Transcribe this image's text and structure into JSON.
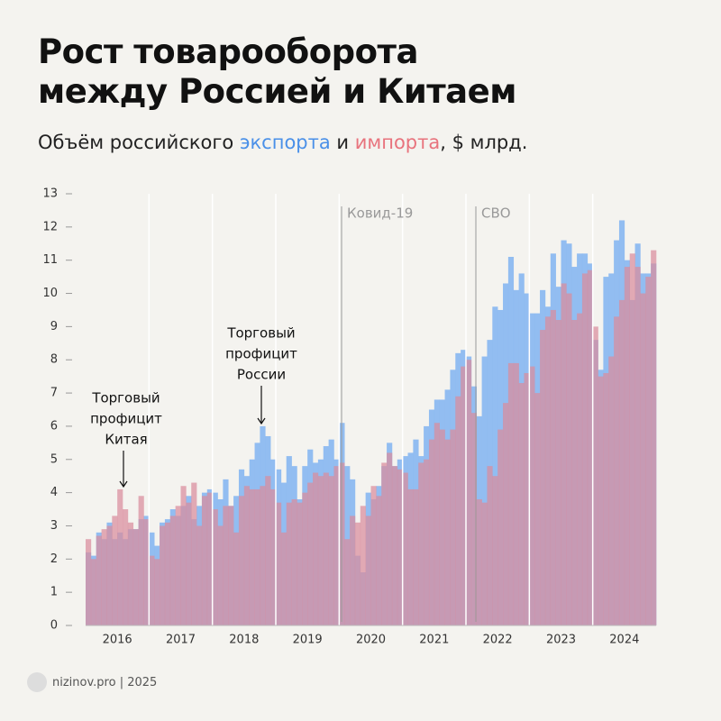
{
  "chart_data": {
    "type": "bar",
    "title": [
      "Рост товарооборота",
      "между Россией и Китаем"
    ],
    "subtitle": [
      "Объём российского ",
      " и ",
      ", $ млрд."
    ],
    "footer": "nizinov.pro | 2025",
    "categories": [
      null,
      null,
      null,
      null,
      null,
      null,
      "2016",
      null,
      null,
      null,
      null,
      null,
      null,
      null,
      null,
      null,
      null,
      null,
      "2017",
      null,
      null,
      null,
      null,
      null,
      null,
      null,
      null,
      null,
      null,
      null,
      "2018",
      null,
      null,
      null,
      null,
      null,
      null,
      null,
      null,
      null,
      null,
      null,
      "2019",
      null,
      null,
      null,
      null,
      null,
      null,
      null,
      null,
      null,
      null,
      null,
      "2020",
      null,
      null,
      null,
      null,
      null,
      null,
      null,
      null,
      null,
      null,
      null,
      "2021",
      null,
      null,
      null,
      null,
      null,
      null,
      null,
      null,
      null,
      null,
      null,
      "2022",
      null,
      null,
      null,
      null,
      null,
      null,
      null,
      null,
      null,
      null,
      null,
      "2023",
      null,
      null,
      null,
      null,
      null,
      null,
      null,
      null,
      null,
      null,
      null,
      "2024",
      null,
      null,
      null,
      null,
      null
    ],
    "series": [
      {
        "name": "экспорта",
        "color": "#8cb9f0",
        "values": [
          2.2,
          2.1,
          2.8,
          2.6,
          3.1,
          2.6,
          2.8,
          2.6,
          2.9,
          2.9,
          3.2,
          3.3,
          2.8,
          2.4,
          3.1,
          3.2,
          3.5,
          3.3,
          3.6,
          3.9,
          3.2,
          3.6,
          4.0,
          4.1,
          4.0,
          3.8,
          4.4,
          3.6,
          3.9,
          4.7,
          4.5,
          5.0,
          5.5,
          6.0,
          5.7,
          5.0,
          4.7,
          4.3,
          5.1,
          4.8,
          3.8,
          4.8,
          5.3,
          4.9,
          5.0,
          5.4,
          5.6,
          5.0,
          6.1,
          4.8,
          4.4,
          2.1,
          1.6,
          4.0,
          3.8,
          4.2,
          4.8,
          5.5,
          4.8,
          5.0,
          5.1,
          5.2,
          5.6,
          5.1,
          6.0,
          6.5,
          6.8,
          6.8,
          7.1,
          7.7,
          8.2,
          8.3,
          8.1,
          7.2,
          6.3,
          8.1,
          8.6,
          9.6,
          9.5,
          10.3,
          11.1,
          10.1,
          10.6,
          10.0,
          9.4,
          9.4,
          10.1,
          9.6,
          11.2,
          10.2,
          11.6,
          11.5,
          10.8,
          11.2,
          11.2,
          10.9,
          8.6,
          7.7,
          10.5,
          10.6,
          11.6,
          12.2,
          11.0,
          9.8,
          11.5,
          10.6,
          10.6,
          10.9
        ]
      },
      {
        "name": "импорта",
        "color": "#d98c9c",
        "values": [
          2.6,
          2.0,
          2.7,
          2.9,
          3.0,
          3.3,
          4.1,
          3.5,
          3.1,
          2.9,
          3.9,
          3.2,
          2.1,
          2.0,
          3.0,
          3.1,
          3.3,
          3.6,
          4.2,
          3.7,
          4.3,
          3.0,
          3.9,
          4.0,
          3.5,
          3.0,
          3.6,
          3.6,
          2.8,
          3.9,
          4.2,
          4.1,
          4.1,
          4.2,
          4.5,
          4.1,
          3.7,
          2.8,
          3.7,
          3.8,
          3.7,
          4.0,
          4.3,
          4.6,
          4.5,
          4.6,
          4.5,
          4.8,
          4.9,
          2.6,
          3.3,
          3.1,
          3.6,
          3.3,
          4.2,
          3.9,
          4.9,
          5.2,
          4.8,
          4.7,
          4.6,
          4.1,
          4.1,
          4.9,
          5.0,
          5.6,
          6.1,
          5.9,
          5.6,
          5.9,
          6.9,
          7.8,
          8.0,
          6.4,
          3.8,
          3.7,
          4.8,
          4.5,
          5.9,
          6.7,
          7.9,
          7.9,
          7.3,
          7.6,
          7.8,
          7.0,
          8.9,
          9.3,
          9.5,
          9.2,
          10.3,
          10.0,
          9.2,
          9.4,
          10.6,
          10.7,
          9.0,
          7.5,
          7.6,
          8.1,
          9.3,
          9.8,
          10.8,
          11.2,
          10.8,
          10.0,
          10.5,
          11.3
        ]
      }
    ],
    "ylim": [
      0,
      13
    ],
    "yticks": [
      0,
      1,
      2,
      3,
      4,
      5,
      6,
      7,
      8,
      9,
      10,
      11,
      12,
      13
    ],
    "annotations": [
      {
        "lines": [
          "Торговый",
          "профицит",
          "Китая"
        ]
      },
      {
        "lines": [
          "Торговый",
          "профицит",
          "России"
        ]
      },
      {
        "lines": [
          "Ковид-19"
        ]
      },
      {
        "lines": [
          "СВО"
        ]
      }
    ]
  }
}
